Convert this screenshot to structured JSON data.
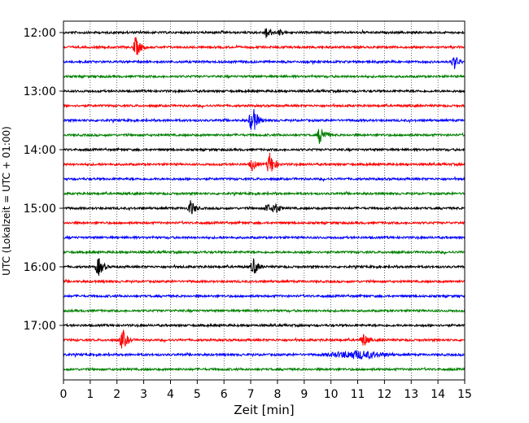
{
  "chart_data": {
    "type": "line",
    "title": "",
    "xlabel": "Zeit  [min]",
    "ylabel": "UTC (Lokalzeit = UTC + 01:00)",
    "xlim": [
      0,
      15
    ],
    "xticks": [
      0,
      1,
      2,
      3,
      4,
      5,
      6,
      7,
      8,
      9,
      10,
      11,
      12,
      13,
      14,
      15
    ],
    "x_tick_labels": [
      "0",
      "1",
      "2",
      "3",
      "4",
      "5",
      "6",
      "7",
      "8",
      "9",
      "10",
      "11",
      "12",
      "13",
      "14",
      "15"
    ],
    "ytick_labels": [
      "12:00",
      "13:00",
      "14:00",
      "15:00",
      "16:00",
      "17:00"
    ],
    "ytick_trace_index": [
      0,
      4,
      8,
      12,
      16,
      20
    ],
    "grid": "vertical dotted",
    "colors": [
      "#000000",
      "#ff0000",
      "#0000ff",
      "#008000"
    ],
    "traces": [
      {
        "start": "12:00",
        "color": "#000000",
        "events": [
          {
            "t": 7.6,
            "amp": 9
          },
          {
            "t": 8.1,
            "amp": 5
          }
        ]
      },
      {
        "start": "12:15",
        "color": "#ff0000",
        "events": [
          {
            "t": 2.7,
            "amp": 14
          }
        ]
      },
      {
        "start": "12:30",
        "color": "#0000ff",
        "events": [
          {
            "t": 14.6,
            "amp": 10
          }
        ]
      },
      {
        "start": "12:45",
        "color": "#008000",
        "events": []
      },
      {
        "start": "13:00",
        "color": "#000000",
        "events": []
      },
      {
        "start": "13:15",
        "color": "#ff0000",
        "events": []
      },
      {
        "start": "13:30",
        "color": "#0000ff",
        "events": [
          {
            "t": 7.05,
            "amp": 20
          }
        ]
      },
      {
        "start": "13:45",
        "color": "#008000",
        "events": [
          {
            "t": 9.6,
            "amp": 14
          }
        ]
      },
      {
        "start": "14:00",
        "color": "#000000",
        "events": []
      },
      {
        "start": "14:15",
        "color": "#ff0000",
        "events": [
          {
            "t": 7.05,
            "amp": 9
          },
          {
            "t": 7.7,
            "amp": 16
          }
        ]
      },
      {
        "start": "14:30",
        "color": "#0000ff",
        "events": []
      },
      {
        "start": "14:45",
        "color": "#008000",
        "events": []
      },
      {
        "start": "15:00",
        "color": "#000000",
        "events": [
          {
            "t": 4.75,
            "amp": 11
          },
          {
            "t": 7.6,
            "amp": 7
          },
          {
            "t": 7.9,
            "amp": 9
          }
        ]
      },
      {
        "start": "15:15",
        "color": "#ff0000",
        "events": []
      },
      {
        "start": "15:30",
        "color": "#0000ff",
        "events": []
      },
      {
        "start": "15:45",
        "color": "#008000",
        "events": []
      },
      {
        "start": "16:00",
        "color": "#000000",
        "events": [
          {
            "t": 1.3,
            "amp": 13
          },
          {
            "t": 7.1,
            "amp": 12
          }
        ]
      },
      {
        "start": "16:15",
        "color": "#ff0000",
        "events": []
      },
      {
        "start": "16:30",
        "color": "#0000ff",
        "events": []
      },
      {
        "start": "16:45",
        "color": "#008000",
        "events": []
      },
      {
        "start": "17:00",
        "color": "#000000",
        "events": []
      },
      {
        "start": "17:15",
        "color": "#ff0000",
        "events": [
          {
            "t": 2.2,
            "amp": 14
          },
          {
            "t": 11.2,
            "amp": 10
          }
        ]
      },
      {
        "start": "17:30",
        "color": "#0000ff",
        "events": [
          {
            "t": 11.0,
            "amp": 6,
            "long": true
          }
        ]
      },
      {
        "start": "17:45",
        "color": "#008000",
        "events": []
      }
    ]
  }
}
